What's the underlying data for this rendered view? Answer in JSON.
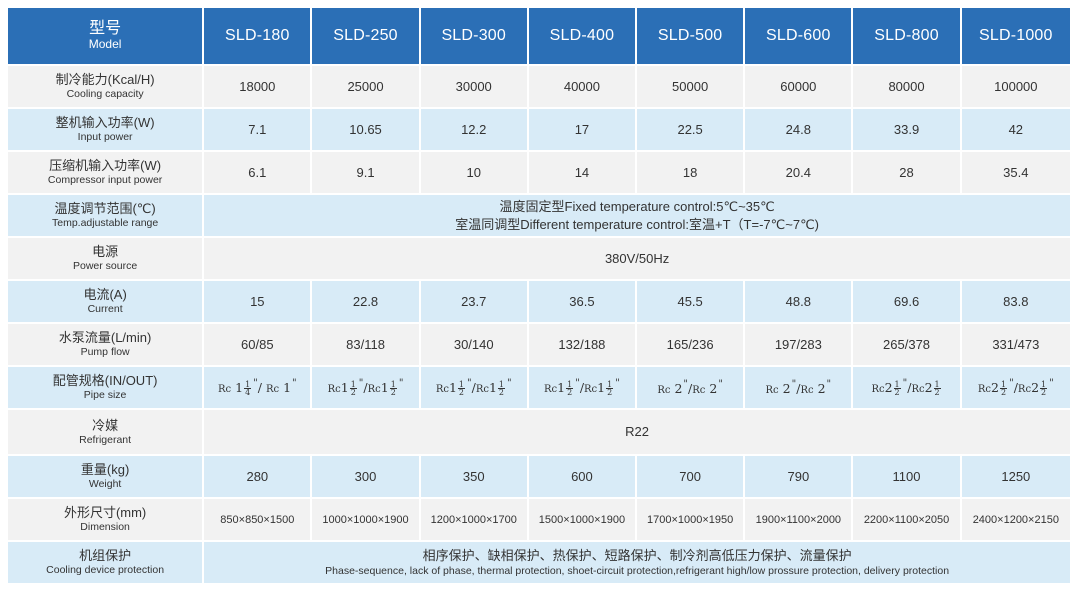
{
  "header": {
    "label_zh": "型号",
    "label_en": "Model",
    "models": [
      "SLD-180",
      "SLD-250",
      "SLD-300",
      "SLD-400",
      "SLD-500",
      "SLD-600",
      "SLD-800",
      "SLD-1000"
    ]
  },
  "rows": {
    "cooling_capacity": {
      "label_zh": "制冷能力(Kcal/H)",
      "label_en": "Cooling capacity",
      "values": [
        "18000",
        "25000",
        "30000",
        "40000",
        "50000",
        "60000",
        "80000",
        "100000"
      ]
    },
    "input_power": {
      "label_zh": "整机输入功率(W)",
      "label_en": "Input power",
      "values": [
        "7.1",
        "10.65",
        "12.2",
        "17",
        "22.5",
        "24.8",
        "33.9",
        "42"
      ]
    },
    "compressor_power": {
      "label_zh": "压缩机输入功率(W)",
      "label_en": "Compressor input power",
      "values": [
        "6.1",
        "9.1",
        "10",
        "14",
        "18",
        "20.4",
        "28",
        "35.4"
      ]
    },
    "temp_range": {
      "label_zh": "温度调节范围(℃)",
      "label_en": "Temp.adjustable range",
      "line1": "温度固定型Fixed temperature control:5℃~35℃",
      "line2": "室温同调型Different temperature control:室温+T（T=-7℃~7℃)"
    },
    "power_source": {
      "label_zh": "电源",
      "label_en": "Power source",
      "value": "380V/50Hz"
    },
    "current": {
      "label_zh": "电流(A)",
      "label_en": "Current",
      "values": [
        "15",
        "22.8",
        "23.7",
        "36.5",
        "45.5",
        "48.8",
        "69.6",
        "83.8"
      ]
    },
    "pump_flow": {
      "label_zh": "水泵流量(L/min)",
      "label_en": "Pump flow",
      "values": [
        "60/85",
        "83/118",
        "30/140",
        "132/188",
        "165/236",
        "197/283",
        "265/378",
        "331/473"
      ]
    },
    "pipe_size": {
      "label_zh": "配管规格(IN/OUT)",
      "label_en": "Pipe size",
      "rc": "Rc",
      "slash": "/",
      "inch": "\"",
      "num": "1",
      "den_quarter": "4",
      "den_half": "2",
      "w1": "1",
      "w2": "2"
    },
    "refrigerant": {
      "label_zh": "冷媒",
      "label_en": "Refrigerant",
      "value": "R22"
    },
    "weight": {
      "label_zh": "重量(kg)",
      "label_en": "Weight",
      "values": [
        "280",
        "300",
        "350",
        "600",
        "700",
        "790",
        "1100",
        "1250"
      ]
    },
    "dimension": {
      "label_zh": "外形尺寸(mm)",
      "label_en": "Dimension",
      "values": [
        "850×850×1500",
        "1000×1000×1900",
        "1200×1000×1700",
        "1500×1000×1900",
        "1700×1000×1950",
        "1900×1100×2000",
        "2200×1100×2050",
        "2400×1200×2150"
      ]
    },
    "protection": {
      "label_zh": "机组保护",
      "label_en": "Cooling device protection",
      "value_zh": "相序保护、缺相保护、热保护、短路保护、制冷剂高低压力保护、流量保护",
      "value_en": "Phase-sequence, lack of phase, thermal protection, shoet-circuit protection,refrigerant high/low prossure protection, delivery protection"
    }
  },
  "colors": {
    "header_bg": "#2b6fb6",
    "row_light": "#f2f2f2",
    "row_blue": "#d8ebf7"
  }
}
